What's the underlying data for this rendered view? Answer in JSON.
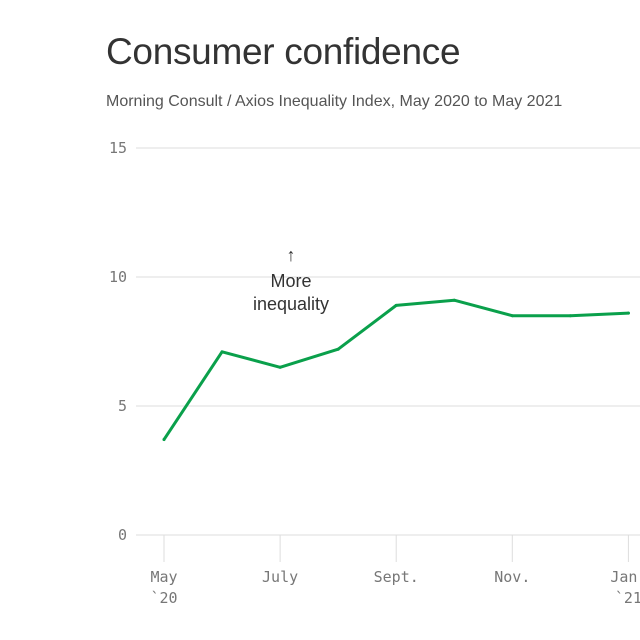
{
  "title": "Consumer confidence",
  "subtitle": "Morning Consult / Axios Inequality Index, May 2020 to May 2021",
  "colors": {
    "line": "#0aa04b",
    "grid": "#dddddd",
    "text": "#333333",
    "tick": "#777777"
  },
  "chart_data": {
    "type": "line",
    "title": "Consumer confidence",
    "subtitle": "Morning Consult / Axios Inequality Index, May 2020 to May 2021",
    "xlabel": "",
    "ylabel": "",
    "ylim": [
      0,
      15
    ],
    "yticks": [
      0,
      5,
      10,
      15
    ],
    "grid": true,
    "x": [
      0,
      1,
      2,
      3,
      4,
      5,
      6,
      7,
      8
    ],
    "series": [
      {
        "name": "Inequality Index",
        "values": [
          3.7,
          7.1,
          6.5,
          7.2,
          8.9,
          9.1,
          8.5,
          8.5,
          8.6
        ]
      }
    ],
    "xticks": [
      {
        "x": 0,
        "label": "May",
        "sublabel": "`20"
      },
      {
        "x": 2,
        "label": "July",
        "sublabel": ""
      },
      {
        "x": 4,
        "label": "Sept.",
        "sublabel": ""
      },
      {
        "x": 6,
        "label": "Nov.",
        "sublabel": ""
      },
      {
        "x": 8,
        "label": "Jan.",
        "sublabel": "`21"
      }
    ],
    "annotation": {
      "arrow": "↑",
      "lines": [
        "More",
        "inequality"
      ]
    }
  }
}
